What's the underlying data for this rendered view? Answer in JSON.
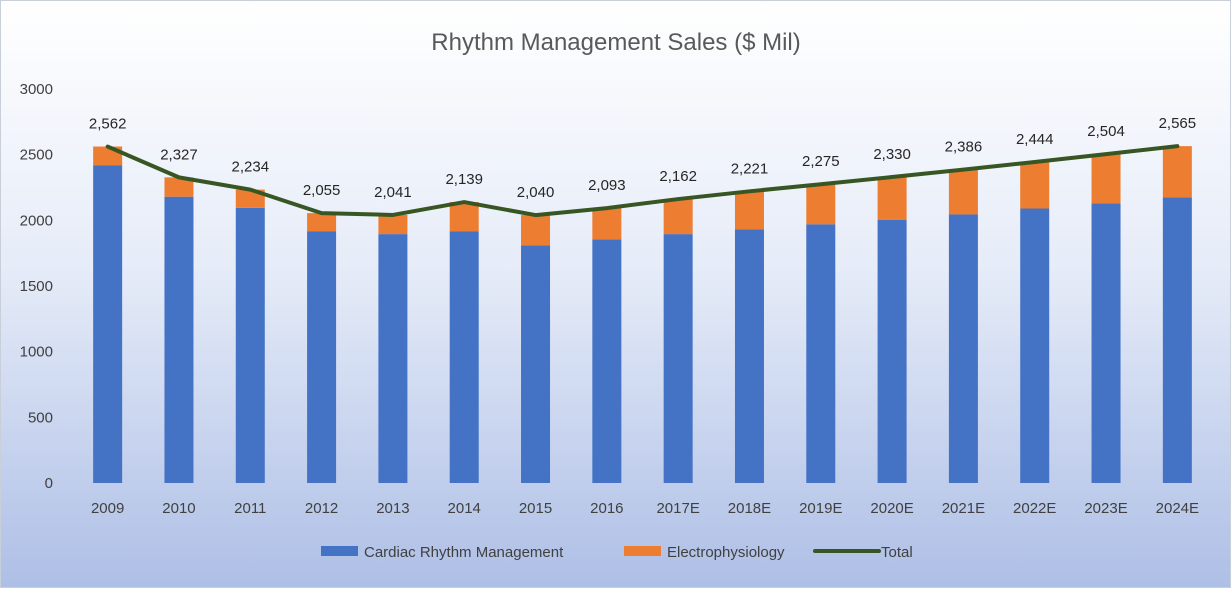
{
  "chart_data": {
    "type": "bar",
    "title": "Rhythm Management Sales ($ Mil)",
    "xlabel": "",
    "ylabel": "",
    "ylim": [
      0,
      3000
    ],
    "yticks": [
      0,
      500,
      1000,
      1500,
      2000,
      2500,
      3000
    ],
    "categories": [
      "2009",
      "2010",
      "2011",
      "2012",
      "2013",
      "2014",
      "2015",
      "2016",
      "2017E",
      "2018E",
      "2019E",
      "2020E",
      "2021E",
      "2022E",
      "2023E",
      "2024E"
    ],
    "series": [
      {
        "name": "Cardiac Rhythm Management",
        "type": "bar",
        "color": "#4472c4",
        "values": [
          2420,
          2180,
          2095,
          1915,
          1895,
          1915,
          1810,
          1855,
          1895,
          1930,
          1970,
          2005,
          2045,
          2090,
          2130,
          2175
        ]
      },
      {
        "name": "Electrophysiology",
        "type": "bar",
        "color": "#ed7d31",
        "values": [
          142,
          147,
          139,
          140,
          146,
          224,
          230,
          238,
          267,
          291,
          305,
          325,
          341,
          354,
          374,
          390
        ]
      },
      {
        "name": "Total",
        "type": "line",
        "color": "#375623",
        "values": [
          2562,
          2327,
          2234,
          2055,
          2041,
          2139,
          2040,
          2093,
          2162,
          2221,
          2275,
          2330,
          2386,
          2444,
          2504,
          2565
        ],
        "labels": [
          "2,562",
          "2,327",
          "2,234",
          "2,055",
          "2,041",
          "2,139",
          "2,040",
          "2,093",
          "2,162",
          "2,221",
          "2,275",
          "2,330",
          "2,386",
          "2,444",
          "2,504",
          "2,565"
        ]
      }
    ],
    "stacked": true,
    "grid": false,
    "legend": "bottom"
  }
}
